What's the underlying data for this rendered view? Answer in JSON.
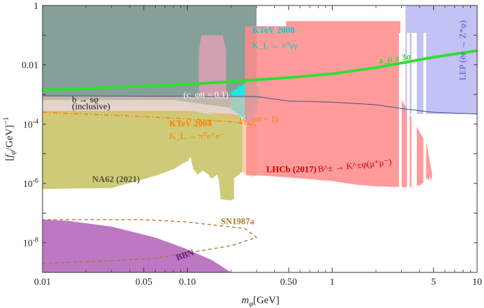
{
  "chart_data": {
    "type": "area",
    "xlabel": "m_φ[GeV]",
    "ylabel": "[f_φ/GeV]^-1",
    "xscale": "log",
    "yscale": "log",
    "xlim": [
      0.01,
      10
    ],
    "ylim": [
      1e-09,
      1
    ],
    "x_ticks": [
      {
        "v": 0.01,
        "label": "0.01"
      },
      {
        "v": 0.05,
        "label": "0.05"
      },
      {
        "v": 0.1,
        "label": "0.10"
      },
      {
        "v": 0.5,
        "label": "0.50"
      },
      {
        "v": 1,
        "label": "1"
      },
      {
        "v": 5,
        "label": "5"
      },
      {
        "v": 10,
        "label": "10"
      }
    ],
    "y_ticks": [
      {
        "v": 1,
        "base": "1",
        "exp": ""
      },
      {
        "v": 0.01,
        "base": "0.01",
        "exp": ""
      },
      {
        "v": 0.0001,
        "base": "10",
        "exp": "-4"
      },
      {
        "v": 1e-06,
        "base": "10",
        "exp": "-6"
      },
      {
        "v": 1e-08,
        "base": "10",
        "exp": "-8"
      }
    ],
    "regions": [
      {
        "name": "KTeV 2008",
        "fill": "#6f8f86",
        "opacity": 0.85,
        "points": [
          [
            0.01,
            1
          ],
          [
            0.3,
            1
          ],
          [
            0.3,
            0.00068
          ],
          [
            0.26,
            0.0002
          ],
          [
            0.23,
            0.0002
          ],
          [
            0.2,
            0.00035
          ],
          [
            0.12,
            0.0005
          ],
          [
            0.08,
            0.00065
          ],
          [
            0.01,
            0.00065
          ]
        ]
      },
      {
        "name": "KTeV 2008 window",
        "fill": "#d8a0b4",
        "opacity": 0.9,
        "points": [
          [
            0.125,
            0.1
          ],
          [
            0.175,
            0.1
          ],
          [
            0.185,
            0.03
          ],
          [
            0.185,
            0.00068
          ],
          [
            0.12,
            0.00068
          ],
          [
            0.12,
            0.03
          ]
        ]
      },
      {
        "name": "KTeV 2008 kaon window",
        "fill": "#00ffff",
        "opacity": 0.75,
        "points": [
          [
            0.2,
            0.0012
          ],
          [
            0.27,
            0.003
          ],
          [
            0.32,
            0.0015
          ],
          [
            0.3,
            0.00025
          ],
          [
            0.27,
            0.0001
          ],
          [
            0.25,
            0.00015
          ],
          [
            0.2,
            0.0003
          ]
        ]
      },
      {
        "name": "b → sφ (inclusive)",
        "fill": "#d8c0b0",
        "opacity": 0.7,
        "points": [
          [
            0.01,
            0.0009
          ],
          [
            0.25,
            0.0009
          ],
          [
            0.25,
            0.0002
          ],
          [
            0.01,
            0.00025
          ]
        ]
      },
      {
        "name": "NA62 (2021)",
        "fill": "#c9c469",
        "opacity": 0.9,
        "points": [
          [
            0.01,
            0.00028
          ],
          [
            0.1,
            0.00028
          ],
          [
            0.14,
            0.00022
          ],
          [
            0.2,
            0.00022
          ],
          [
            0.23,
            0.0002
          ],
          [
            0.24,
            0.00012
          ],
          [
            0.24,
            2.5e-06
          ],
          [
            0.21,
            1.5e-06
          ],
          [
            0.21,
            3e-07
          ],
          [
            0.2,
            2.7e-07
          ],
          [
            0.19,
            2.7e-07
          ],
          [
            0.17,
            3e-07
          ],
          [
            0.165,
            1.3e-06
          ],
          [
            0.16,
            2e-06
          ],
          [
            0.15,
            1.5e-06
          ],
          [
            0.145,
            1.5e-06
          ],
          [
            0.14,
            2e-06
          ],
          [
            0.128,
            2.7e-06
          ],
          [
            0.118,
            2e-06
          ],
          [
            0.11,
            3e-06
          ],
          [
            0.105,
            8e-06
          ],
          [
            0.1,
            5.5e-06
          ],
          [
            0.095,
            5e-06
          ],
          [
            0.08,
            3e-06
          ],
          [
            0.06,
            1.8e-06
          ],
          [
            0.03,
            7e-07
          ],
          [
            0.01,
            6.5e-07
          ]
        ]
      },
      {
        "name": "KTeV 2004",
        "fill": "#f0b070",
        "opacity": 0.55,
        "points": [
          [
            0.01,
            0.00028
          ],
          [
            0.1,
            0.00028
          ],
          [
            0.2,
            0.00022
          ],
          [
            0.27,
            0.00012
          ],
          [
            0.3,
            0.0001
          ],
          [
            0.3,
            1.8e-06
          ],
          [
            0.27,
            1.7e-06
          ],
          [
            0.24,
            2.5e-06
          ],
          [
            0.24,
            0.00012
          ],
          [
            0.14,
            0.00025
          ],
          [
            0.01,
            0.00025
          ]
        ]
      },
      {
        "name": "LHCb (2017)",
        "fill": "#ff8a8a",
        "opacity": 0.85,
        "points": [
          [
            0.25,
            0.2
          ],
          [
            0.48,
            0.2
          ],
          [
            0.48,
            0.3
          ],
          [
            2.95,
            0.3
          ],
          [
            2.95,
            0.0008
          ],
          [
            4.5,
            2e-05
          ],
          [
            4.9,
            2e-06
          ],
          [
            4.8,
            1.2e-06
          ],
          [
            4.7,
            1.8e-06
          ],
          [
            4.6,
            1.2e-06
          ],
          [
            4.5,
            1.5e-06
          ],
          [
            4.1,
            9e-07
          ],
          [
            3.6,
            7.5e-07
          ],
          [
            3.0,
            7.5e-07
          ],
          [
            2.0,
            8e-07
          ],
          [
            1.5,
            9e-07
          ],
          [
            1.0,
            1.2e-06
          ],
          [
            0.7,
            1.4e-06
          ],
          [
            0.5,
            1.6e-06
          ],
          [
            0.35,
            1.8e-06
          ],
          [
            0.27,
            1.9e-06
          ],
          [
            0.255,
            1.9e-06
          ],
          [
            0.255,
            0.00012
          ],
          [
            0.25,
            0.0001
          ]
        ]
      },
      {
        "name": "LEP (ēe → Z*φ)",
        "fill": "#a8a8f0",
        "opacity": 0.7,
        "points": [
          [
            3.2,
            1
          ],
          [
            10,
            1
          ],
          [
            10,
            0.00022
          ],
          [
            6,
            0.00022
          ],
          [
            3.2,
            0.00022
          ]
        ]
      },
      {
        "name": "BBN",
        "fill": "#b060b8",
        "opacity": 0.85,
        "points": [
          [
            0.01,
            1e-09
          ],
          [
            0.01,
            6e-08
          ],
          [
            0.015,
            5.5e-08
          ],
          [
            0.03,
            3.5e-08
          ],
          [
            0.06,
            1.5e-08
          ],
          [
            0.1,
            6e-09
          ],
          [
            0.15,
            2.5e-09
          ],
          [
            0.2,
            1e-09
          ],
          [
            0.2,
            1e-09
          ]
        ]
      }
    ],
    "lines": [
      {
        "name": "a_μ ± 3σ",
        "color": "#33dd33",
        "width": 4,
        "style": "solid",
        "points": [
          [
            0.01,
            0.0014
          ],
          [
            0.05,
            0.0019
          ],
          [
            0.1,
            0.0022
          ],
          [
            0.2,
            0.0027
          ],
          [
            0.5,
            0.0037
          ],
          [
            1,
            0.005
          ],
          [
            2,
            0.008
          ],
          [
            5,
            0.018
          ],
          [
            10,
            0.03
          ]
        ]
      },
      {
        "name": "b → sφ (c_φtt = 1)",
        "color": "#ff7f00",
        "width": 1.5,
        "style": "dashdot",
        "points": [
          [
            0.01,
            0.00025
          ],
          [
            0.05,
            0.00018
          ],
          [
            0.1,
            0.00015
          ],
          [
            0.2,
            0.00012
          ],
          [
            0.3,
            9e-05
          ]
        ]
      },
      {
        "name": "b → sφ (c_φtt = 0.1)",
        "color": "#405080",
        "width": 1,
        "style": "solid",
        "points": [
          [
            0.01,
            0.0009
          ],
          [
            0.3,
            0.00085
          ],
          [
            0.5,
            0.0006
          ],
          [
            1,
            0.00055
          ],
          [
            2,
            0.00045
          ],
          [
            3.2,
            0.00032
          ],
          [
            5,
            0.00025
          ],
          [
            10,
            0.00022
          ]
        ]
      },
      {
        "name": "SN1987a",
        "color": "#b07830",
        "width": 1.4,
        "style": "dashed",
        "points": [
          [
            0.01,
            2e-09
          ],
          [
            0.03,
            2.5e-09
          ],
          [
            0.06,
            3e-09
          ],
          [
            0.1,
            4.5e-09
          ],
          [
            0.2,
            8e-09
          ],
          [
            0.3,
            1.5e-08
          ],
          [
            0.25,
            3e-08
          ],
          [
            0.1,
            5e-08
          ],
          [
            0.05,
            6e-08
          ],
          [
            0.01,
            6e-08
          ]
        ]
      }
    ],
    "spikes": [
      {
        "x": 2.95,
        "color": "#ffffff"
      },
      {
        "x": 3.35,
        "color": "#ffffff"
      },
      {
        "x": 3.6,
        "color": "#ffffff"
      },
      {
        "x": 3.75,
        "color": "#ffffff"
      },
      {
        "x": 4.35,
        "color": "#ffffff"
      }
    ],
    "annotations": [
      {
        "id": "ktev2008-title",
        "text": "KTeV 2008",
        "x": 0.28,
        "y": 0.12,
        "color": "#00cccc",
        "bold": true
      },
      {
        "id": "ktev2008-decay",
        "text": "K_L → π⁰γγ",
        "x": 0.28,
        "y": 0.036,
        "color": "#00cccc",
        "bold": false
      },
      {
        "id": "amu-label",
        "text": "a_μ ± 3σ",
        "x": 2.1,
        "y": 0.011,
        "color": "#33dd33",
        "bold": true,
        "rotate": -8
      },
      {
        "id": "lep-label",
        "text": "LEP (ēe → Z*φ)",
        "x": 8.3,
        "y": 0.003,
        "color": "#5555cc",
        "bold": false,
        "rotate": -90
      },
      {
        "id": "bsphi-title",
        "text": "b → sφ",
        "x": 0.016,
        "y": 0.00055,
        "color": "#111111",
        "bold": false
      },
      {
        "id": "bsphi-incl",
        "text": "(inclusive)",
        "x": 0.016,
        "y": 0.00032,
        "color": "#111111",
        "bold": false
      },
      {
        "id": "c01-label",
        "text": "(c_φtt = 0.1)",
        "x": 0.094,
        "y": 0.00078,
        "color": "#ffffff",
        "bold": false,
        "small": true
      },
      {
        "id": "c1-label",
        "text": "(c_φtt = 1)",
        "x": 0.23,
        "y": 0.00012,
        "color": "#ff7f00",
        "bold": false,
        "small": true
      },
      {
        "id": "ktev2004-title",
        "text": "KTeV 2004",
        "x": 0.075,
        "y": 8.5e-05,
        "color": "#ff7f00",
        "bold": true
      },
      {
        "id": "ktev2004-decay",
        "text": "K_L → π⁰e⁺e⁻",
        "x": 0.075,
        "y": 3.2e-05,
        "color": "#ff7f00",
        "bold": false
      },
      {
        "id": "na62-label",
        "text": "NA62 (2021)",
        "x": 0.022,
        "y": 1.1e-06,
        "color": "#555533",
        "bold": true
      },
      {
        "id": "lhcb-label",
        "text": "LHCb (2017)",
        "x": 0.35,
        "y": 2.4e-06,
        "color": "#cc0000",
        "bold": true
      },
      {
        "id": "lhcb-decay",
        "text": "B^± → K^±φ(μ⁺μ⁻)",
        "x": 0.8,
        "y": 2.4e-06,
        "color": "#cc0000",
        "bold": false,
        "rotate": -6
      },
      {
        "id": "sn-label",
        "text": "SN1987a",
        "x": 0.17,
        "y": 4.2e-08,
        "color": "#b07830",
        "bold": true
      },
      {
        "id": "bbn-label",
        "text": "BBN",
        "x": 0.085,
        "y": 2.5e-09,
        "color": "#6a1a7a",
        "bold": true,
        "rotate": -18
      }
    ],
    "grid": false,
    "legend": "none"
  }
}
